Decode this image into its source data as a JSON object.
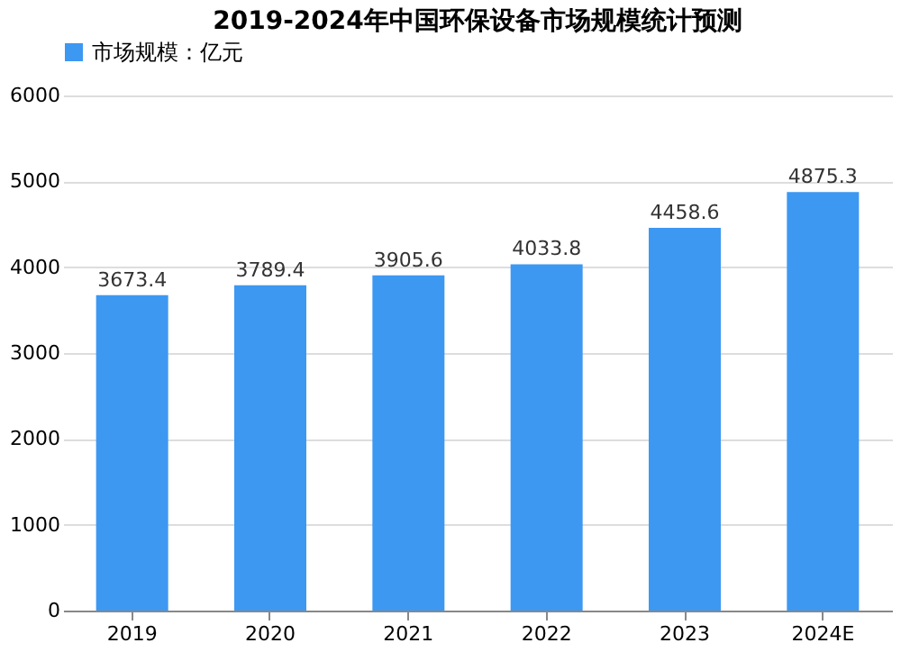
{
  "chart_data": {
    "type": "bar",
    "title": "2019-2024年中国环保设备市场规模统计预测",
    "categories": [
      "2019",
      "2020",
      "2021",
      "2022",
      "2023",
      "2024E"
    ],
    "series": [
      {
        "name": "市场规模：亿元",
        "color": "#3d98f2",
        "values": [
          3673.4,
          3789.4,
          3905.6,
          4033.8,
          4458.6,
          4875.3
        ]
      }
    ],
    "ylim": [
      0,
      6000
    ],
    "yticks": [
      0,
      1000,
      2000,
      3000,
      4000,
      5000,
      6000
    ],
    "grid": "y",
    "legend": "top",
    "data_labels": true
  }
}
